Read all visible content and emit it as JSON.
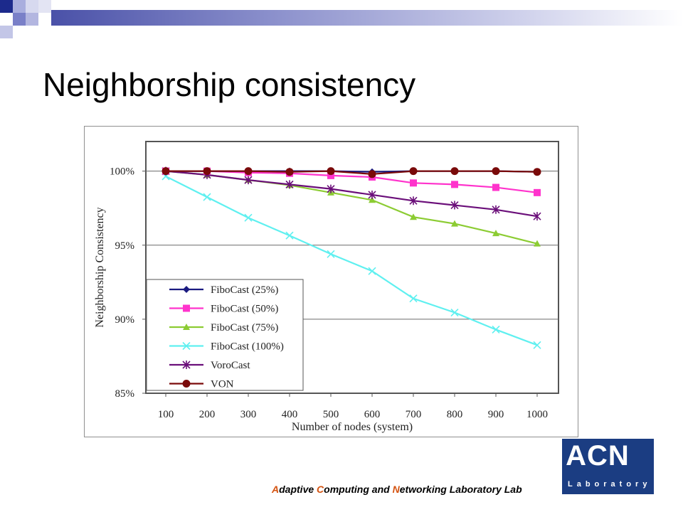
{
  "slide": {
    "title": "Neighborship consistency",
    "footer": {
      "parts": [
        {
          "text": "A",
          "color": "#d4520f"
        },
        {
          "text": "daptive ",
          "color": "#000000"
        },
        {
          "text": "C",
          "color": "#d4520f"
        },
        {
          "text": "omputing and ",
          "color": "#000000"
        },
        {
          "text": "N",
          "color": "#d4520f"
        },
        {
          "text": "etworking Laboratory Lab",
          "color": "#000000"
        }
      ]
    },
    "logo": {
      "main": "ACN",
      "sub": "Laboratory",
      "color": "#1b3d82"
    }
  },
  "chart_data": {
    "type": "line",
    "xlabel": "Number of nodes (system)",
    "ylabel": "Neighborship Consistency",
    "x": [
      100,
      200,
      300,
      400,
      500,
      600,
      700,
      800,
      900,
      1000
    ],
    "ylim": [
      85,
      102
    ],
    "yticks": [
      85,
      90,
      95,
      100
    ],
    "ytick_labels": [
      "85%",
      "90%",
      "95%",
      "100%"
    ],
    "grid": "horizontal",
    "legend_position": "bottom-left",
    "series": [
      {
        "name": "FiboCast (25%)",
        "color": "#1a1a80",
        "marker": "diamond",
        "values": [
          100,
          100,
          100,
          100,
          100,
          99.95,
          100,
          100,
          100,
          99.95
        ]
      },
      {
        "name": "FiboCast (50%)",
        "color": "#ff33cc",
        "marker": "square",
        "values": [
          100,
          100,
          99.9,
          99.85,
          99.7,
          99.6,
          99.2,
          99.1,
          98.9,
          98.55
        ]
      },
      {
        "name": "FiboCast (75%)",
        "color": "#8ccc33",
        "marker": "triangle",
        "values": [
          100,
          99.75,
          99.4,
          99.05,
          98.55,
          98.05,
          96.9,
          96.45,
          95.8,
          95.1
        ]
      },
      {
        "name": "FiboCast (100%)",
        "color": "#5ff0f0",
        "marker": "x",
        "values": [
          99.65,
          98.25,
          96.85,
          95.65,
          94.4,
          93.25,
          91.4,
          90.45,
          89.3,
          88.25
        ]
      },
      {
        "name": "VoroCast",
        "color": "#6b0f7a",
        "marker": "asterisk",
        "values": [
          100,
          99.75,
          99.4,
          99.1,
          98.8,
          98.4,
          98.0,
          97.7,
          97.4,
          96.95
        ]
      },
      {
        "name": "VON",
        "color": "#7a0a0a",
        "marker": "circle",
        "values": [
          100,
          100,
          100,
          99.95,
          100,
          99.8,
          100,
          100,
          100,
          99.95
        ]
      }
    ]
  }
}
